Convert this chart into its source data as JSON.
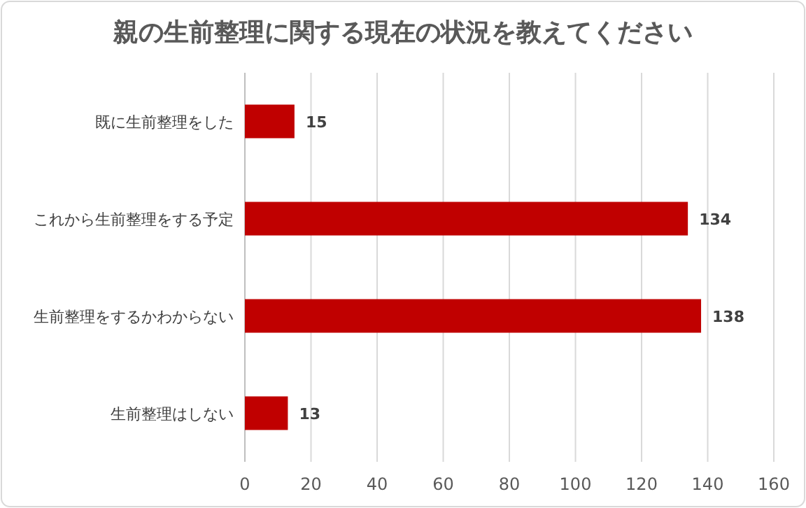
{
  "chart_data": {
    "type": "bar",
    "orientation": "horizontal",
    "title": "親の生前整理に関する現在の状況を教えてください",
    "categories": [
      "既に生前整理をした",
      "これから生前整理をする予定",
      "生前整理をするかわからない",
      "生前整理はしない"
    ],
    "values": [
      15,
      134,
      138,
      13
    ],
    "color": "#c00000",
    "xlim": [
      0,
      160
    ],
    "xticks": [
      0,
      20,
      40,
      60,
      80,
      100,
      120,
      140,
      160
    ],
    "grid": "x",
    "data_labels": true
  }
}
